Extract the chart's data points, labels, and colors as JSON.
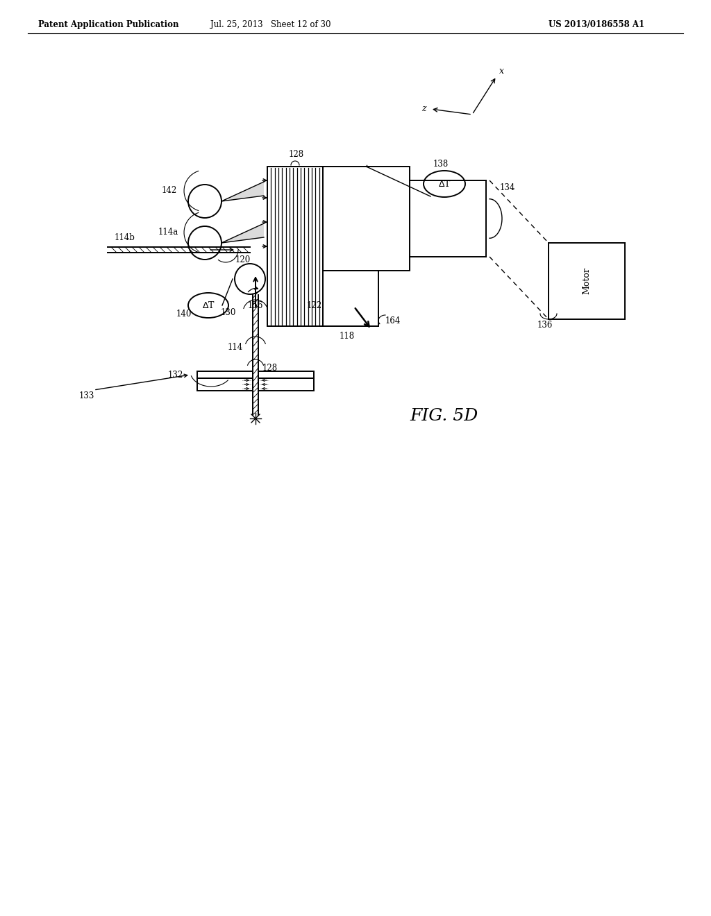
{
  "bg_color": "#ffffff",
  "header_left": "Patent Application Publication",
  "header_mid": "Jul. 25, 2013   Sheet 12 of 30",
  "header_right": "US 2013/0186558 A1",
  "fig_label": "FIG. 5D"
}
